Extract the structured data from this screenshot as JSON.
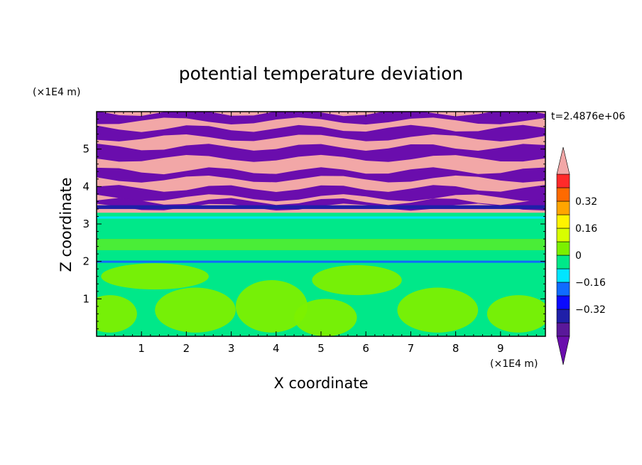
{
  "chart_data": {
    "type": "heatmap",
    "title": "potential temperature deviation",
    "xlabel": "X coordinate",
    "ylabel": "Z coordinate",
    "x_unit": "(×1E4 m)",
    "y_unit": "(×1E4 m)",
    "time_label": "t=2.4876e+06",
    "xlim": [
      0,
      10
    ],
    "ylim": [
      0,
      6
    ],
    "x_ticks": [
      "1",
      "2",
      "3",
      "4",
      "5",
      "6",
      "7",
      "8",
      "9"
    ],
    "y_ticks": [
      "1",
      "2",
      "3",
      "4",
      "5"
    ],
    "colorbar": {
      "levels": [
        -0.48,
        -0.4,
        -0.32,
        -0.24,
        -0.16,
        -0.08,
        0,
        0.08,
        0.16,
        0.24,
        0.32,
        0.4,
        0.48
      ],
      "colors": [
        "#6a0dad",
        "#5a189a",
        "#1f1fa8",
        "#0a0aff",
        "#0f6bff",
        "#00e5ff",
        "#00e889",
        "#7cf000",
        "#d8ff00",
        "#fff400",
        "#ffa500",
        "#ff6a00",
        "#ff2a2a",
        "#f2a7a7"
      ],
      "tick_labels": [
        "0.32",
        "0.16",
        "0",
        "−0.16",
        "−0.32"
      ],
      "tick_values": [
        0.32,
        0.16,
        0,
        -0.16,
        -0.32
      ]
    },
    "grid": false
  }
}
